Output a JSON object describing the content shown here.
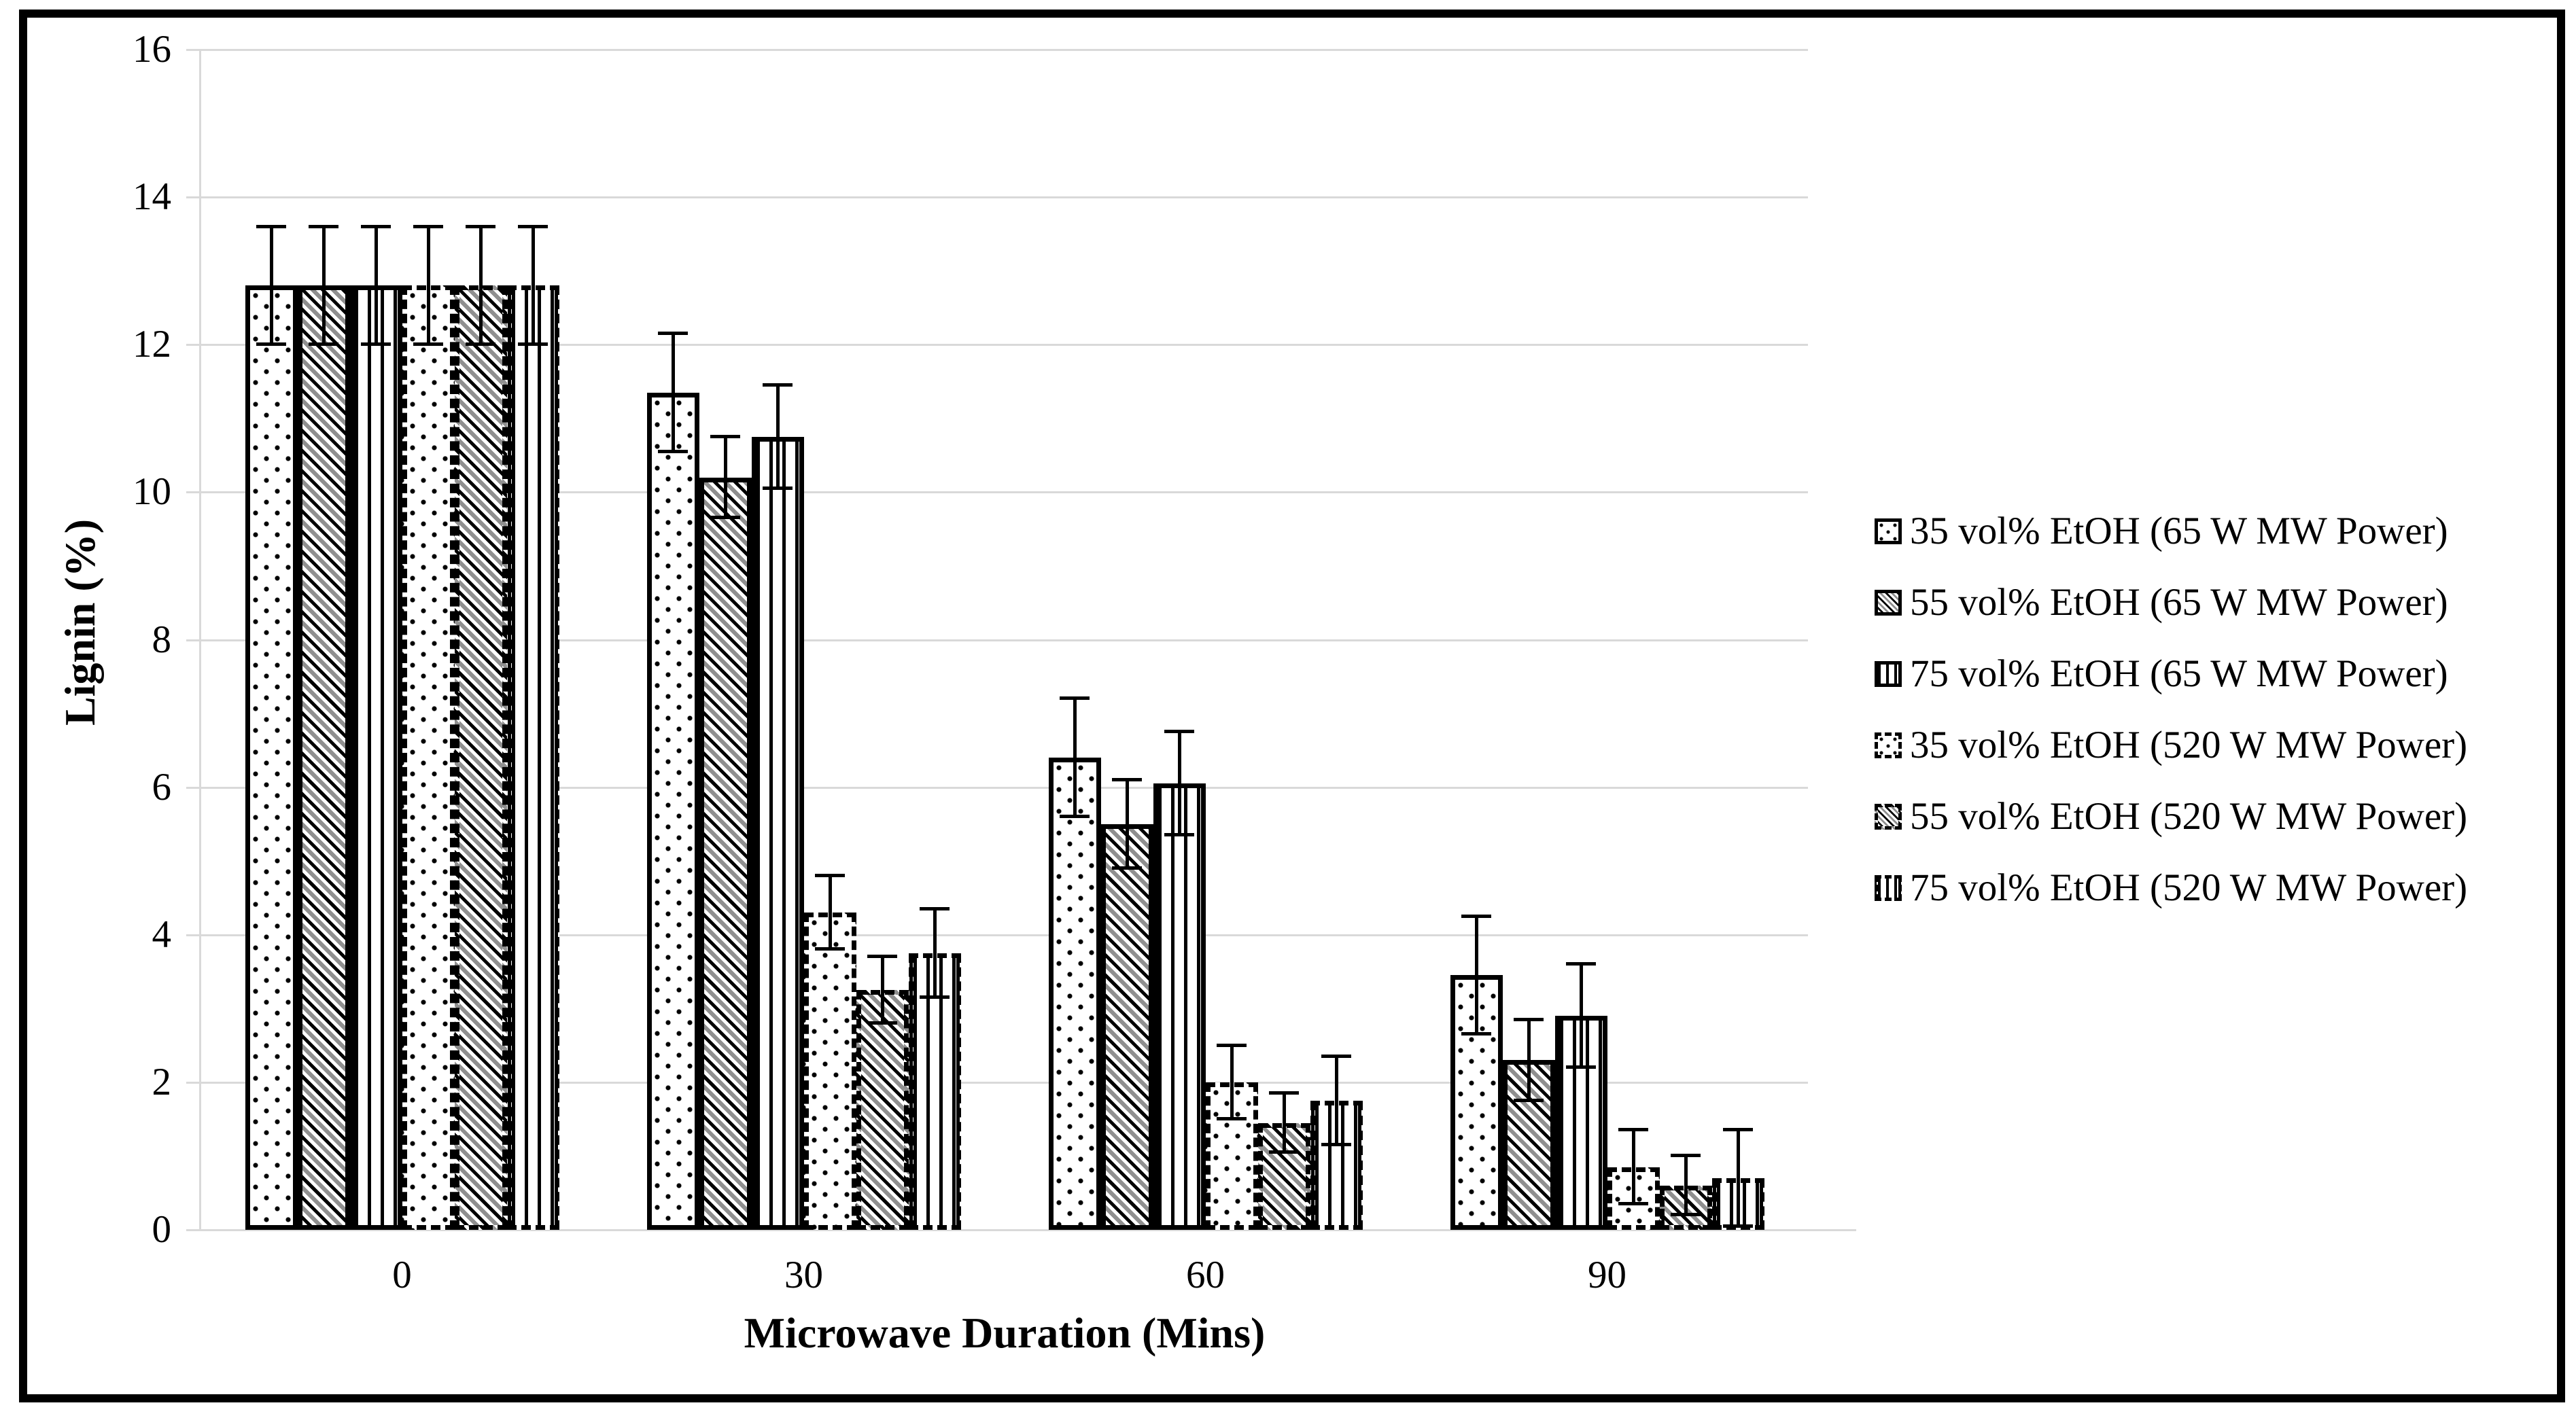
{
  "figure": {
    "background": "#ffffff",
    "frame_color": "#000000"
  },
  "chart_data": {
    "type": "bar",
    "title": "",
    "xlabel": "Microwave Duration (Mins)",
    "ylabel": "Lignin (%)",
    "categories": [
      "0",
      "30",
      "60",
      "90"
    ],
    "ylim": [
      0,
      16
    ],
    "yticks": [
      0,
      2,
      4,
      6,
      8,
      10,
      12,
      14,
      16
    ],
    "grid": true,
    "legend_position": "right",
    "series": [
      {
        "name": "35 vol% EtOH (65 W MW Power)",
        "pattern": "dots",
        "border": "solid",
        "values": [
          12.8,
          11.35,
          6.4,
          3.45
        ],
        "errors": [
          0.8,
          0.8,
          0.8,
          0.8
        ]
      },
      {
        "name": "55 vol% EtOH (65 W MW Power)",
        "pattern": "diagonal",
        "border": "solid",
        "values": [
          12.8,
          10.2,
          5.5,
          2.3
        ],
        "errors": [
          0.8,
          0.55,
          0.6,
          0.55
        ]
      },
      {
        "name": "75 vol% EtOH (65 W MW Power)",
        "pattern": "vertical",
        "border": "solid",
        "values": [
          12.8,
          10.75,
          6.05,
          2.9
        ],
        "errors": [
          0.8,
          0.7,
          0.7,
          0.7
        ]
      },
      {
        "name": "35 vol% EtOH (520 W MW Power)",
        "pattern": "dots",
        "border": "dashed",
        "values": [
          12.8,
          4.3,
          2.0,
          0.85
        ],
        "errors": [
          0.8,
          0.5,
          0.5,
          0.5
        ]
      },
      {
        "name": "55 vol% EtOH (520 W MW Power)",
        "pattern": "diagonal",
        "border": "dashed",
        "values": [
          12.8,
          3.25,
          1.45,
          0.6
        ],
        "errors": [
          0.8,
          0.45,
          0.4,
          0.4
        ]
      },
      {
        "name": "75 vol% EtOH (520 W MW Power)",
        "pattern": "vertical",
        "border": "dashed",
        "values": [
          12.8,
          3.75,
          1.75,
          0.7
        ],
        "errors": [
          0.8,
          0.6,
          0.6,
          0.65
        ]
      }
    ],
    "colors": {
      "bar_fill": "#ffffff",
      "bar_stroke": "#000000",
      "gridline": "#d9d9d9",
      "error_bar": "#000000",
      "text": "#000000"
    }
  }
}
